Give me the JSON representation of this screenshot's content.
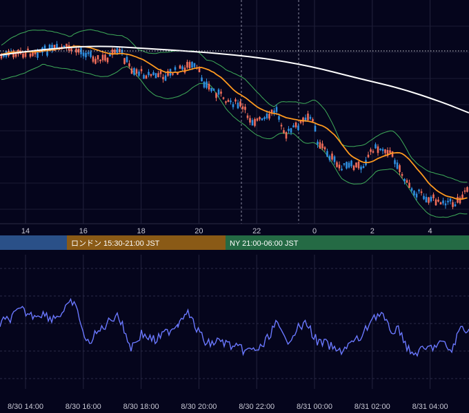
{
  "chart_data": [
    {
      "type": "candlestick",
      "panel": "price",
      "x_axis_unit": "hour",
      "top_tick_labels": [
        "14",
        "16",
        "18",
        "20",
        "22",
        "0",
        "2",
        "4"
      ],
      "overlays": [
        {
          "kind": "moving-average",
          "color": "#ffffff"
        },
        {
          "kind": "moving-average",
          "color": "#ff9a1f"
        },
        {
          "kind": "bollinger-bands",
          "color": "#3fae5a"
        }
      ],
      "candle_colors": {
        "up": "#2f8fe0",
        "down": "#f06e5a"
      },
      "horizontal_price_line": "dotted",
      "grid": true
    },
    {
      "type": "line",
      "panel": "oscillator",
      "color": "#6a78ff",
      "grid": true,
      "bottom_tick_labels": [
        "8/30 14:00",
        "8/30 16:00",
        "8/30 18:00",
        "8/30 20:00",
        "8/30 22:00",
        "8/31 00:00",
        "8/31 02:00",
        "8/31 04:00"
      ]
    }
  ],
  "sessions": [
    {
      "label": "",
      "color": "#2a5088"
    },
    {
      "label": "ロンドン 15:30-21:00 JST",
      "color": "#8a5a16"
    },
    {
      "label": "NY 21:00-06:00 JST",
      "color": "#246a44"
    }
  ]
}
